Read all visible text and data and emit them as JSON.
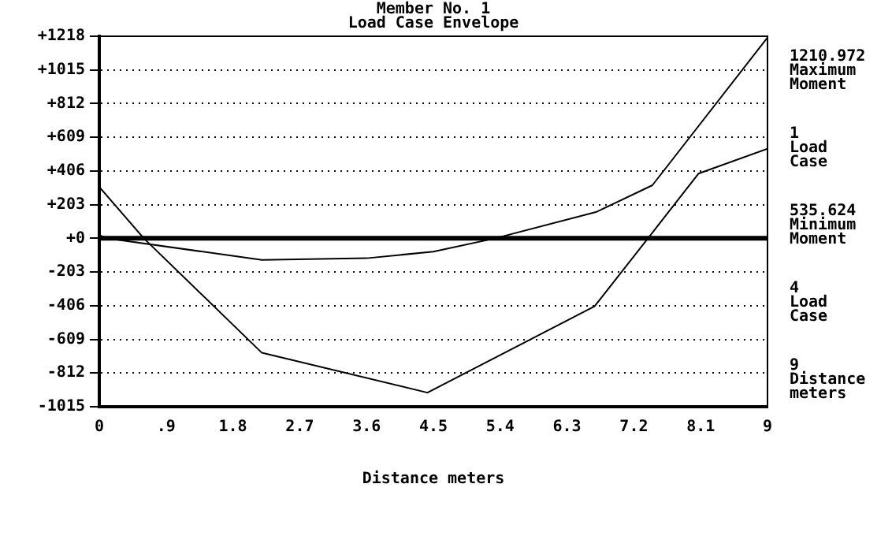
{
  "chart_data": {
    "type": "line",
    "title": "Member No. 1\nLoad Case Envelope",
    "xlabel": "Distance meters",
    "xlim": [
      0,
      9
    ],
    "xticks": [
      0,
      {
        "value": 0.9,
        "label": ".9"
      },
      1.8,
      2.7,
      3.6,
      4.5,
      5.4,
      6.3,
      7.2,
      8.1,
      9
    ],
    "ylim": [
      -1015,
      1218
    ],
    "yticks": [
      {
        "value": -1015,
        "label": "-1015"
      },
      {
        "value": -812,
        "label": "-812"
      },
      {
        "value": -609,
        "label": "-609"
      },
      {
        "value": -406,
        "label": "-406"
      },
      {
        "value": -203,
        "label": "-203"
      },
      {
        "value": 0,
        "label": "+0"
      },
      {
        "value": 203,
        "label": "+203"
      },
      {
        "value": 406,
        "label": "+406"
      },
      {
        "value": 609,
        "label": "+609"
      },
      {
        "value": 812,
        "label": "+812"
      },
      {
        "value": 1015,
        "label": "+1015"
      },
      {
        "value": 1218,
        "label": "+1218"
      }
    ],
    "grid": "y",
    "line_style": "solid",
    "marker": "none",
    "legend": false,
    "series": [
      {
        "color": "#000000",
        "x": [
          0,
          0.6,
          2.19,
          4.42,
          6.67,
          7.39,
          8.07,
          9
        ],
        "values": [
          310,
          0,
          -690,
          -930,
          -410,
          0,
          390,
          540
        ]
      },
      {
        "color": "#000000",
        "x": [
          0,
          0.1,
          2.19,
          3.6,
          4.5,
          5.33,
          6.7,
          7.45,
          9
        ],
        "values": [
          20,
          0,
          -130,
          -120,
          -80,
          0,
          160,
          320,
          1210
        ]
      }
    ],
    "ref_lines": [
      {
        "axis": "y",
        "value": 0,
        "color": "#000000"
      }
    ],
    "annotations": [
      "1210.972\nMaximum\nMoment",
      "1\nLoad\nCase",
      "535.624\nMinimum\nMoment",
      "4\nLoad\nCase",
      "9\nDistance\nmeters"
    ]
  }
}
